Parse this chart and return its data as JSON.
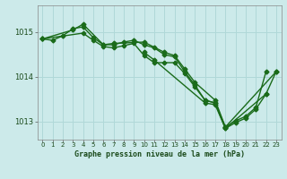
{
  "background_color": "#cceaea",
  "grid_color": "#b0d8d8",
  "line_color": "#1a6b1a",
  "xlabel": "Graphe pression niveau de la mer (hPa)",
  "ylim": [
    1012.6,
    1015.6
  ],
  "xlim": [
    -0.5,
    23.5
  ],
  "yticks": [
    1013,
    1014,
    1015
  ],
  "xticks": [
    0,
    1,
    2,
    3,
    4,
    5,
    6,
    7,
    8,
    9,
    10,
    11,
    12,
    13,
    14,
    15,
    16,
    17,
    18,
    19,
    20,
    21,
    22,
    23
  ],
  "series": [
    {
      "x": [
        0,
        1,
        2,
        3,
        4,
        5,
        6,
        7,
        8,
        9,
        10,
        11,
        12,
        13,
        14,
        15,
        16,
        17,
        18,
        19,
        20,
        21,
        22
      ],
      "y": [
        1014.85,
        1014.82,
        1014.92,
        1015.08,
        1015.12,
        1014.88,
        1014.72,
        1014.72,
        1014.78,
        1014.82,
        1014.72,
        1014.65,
        1014.5,
        1014.45,
        1014.12,
        1013.82,
        1013.48,
        1013.42,
        1012.88,
        1013.02,
        1013.12,
        1013.32,
        1014.12
      ],
      "marker": "D",
      "markersize": 2.5,
      "linewidth": 1.0
    },
    {
      "x": [
        0,
        3,
        4,
        6,
        7,
        10,
        12,
        13,
        14,
        15,
        17,
        18,
        23
      ],
      "y": [
        1014.85,
        1015.05,
        1015.18,
        1014.72,
        1014.75,
        1014.78,
        1014.55,
        1014.48,
        1014.18,
        1013.88,
        1013.48,
        1012.88,
        1014.12
      ],
      "marker": "D",
      "markersize": 2.5,
      "linewidth": 1.0
    },
    {
      "x": [
        0,
        4,
        5,
        6,
        7,
        8,
        9,
        10,
        11,
        12,
        13,
        14,
        15,
        16,
        17,
        18,
        22
      ],
      "y": [
        1014.85,
        1014.98,
        1014.82,
        1014.68,
        1014.65,
        1014.7,
        1014.75,
        1014.48,
        1014.32,
        1014.32,
        1014.32,
        1014.08,
        1013.78,
        1013.48,
        1013.42,
        1012.85,
        1013.62
      ],
      "marker": "P",
      "markersize": 3.0,
      "linewidth": 1.0
    },
    {
      "x": [
        10,
        11,
        16,
        17,
        18,
        19,
        20,
        21,
        22,
        23
      ],
      "y": [
        1014.55,
        1014.38,
        1013.42,
        1013.38,
        1012.85,
        1012.98,
        1013.08,
        1013.28,
        1013.62,
        1014.12
      ],
      "marker": "D",
      "markersize": 2.5,
      "linewidth": 1.0
    }
  ]
}
